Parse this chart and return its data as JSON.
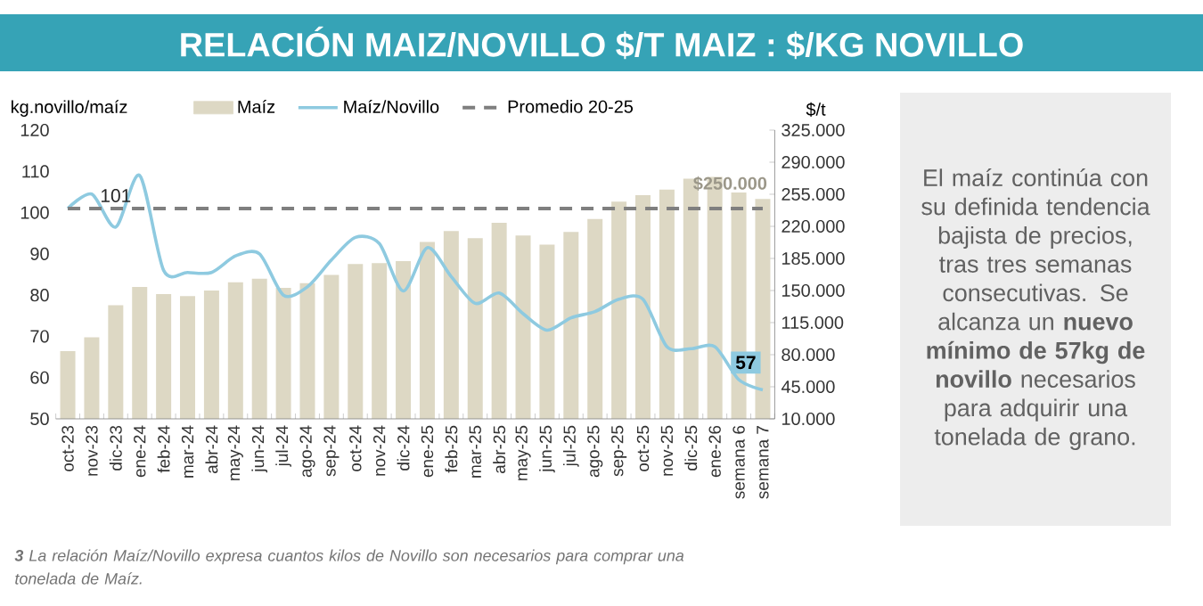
{
  "chart_data": {
    "type": "bar",
    "title": "RELACIÓN MAIZ/NOVILLO $/T MAIZ : $/KG NOVILLO",
    "ylabel": "kg.novillo/maíz",
    "y2label": "$/t",
    "categories": [
      "oct-23",
      "nov-23",
      "dic-23",
      "ene-24",
      "feb-24",
      "mar-24",
      "abr-24",
      "may-24",
      "jun-24",
      "jul-24",
      "ago-24",
      "sep-24",
      "oct-24",
      "nov-24",
      "dic-24",
      "ene-25",
      "feb-25",
      "mar-25",
      "abr-25",
      "may-25",
      "jun-25",
      "jul-25",
      "ago-25",
      "sep-25",
      "oct-25",
      "nov-25",
      "dic-25",
      "ene-26",
      "semana 6",
      "semana 7"
    ],
    "series": [
      {
        "name": "Maíz",
        "axis": "y2",
        "color": "#ddd8c4",
        "values": [
          84000,
          99000,
          134000,
          154000,
          146000,
          144000,
          150000,
          159000,
          163000,
          153000,
          158000,
          167000,
          179000,
          180000,
          182000,
          203000,
          215000,
          207000,
          224000,
          210000,
          200000,
          214000,
          228000,
          247000,
          254000,
          260000,
          272000,
          274000,
          257000,
          250000
        ],
        "value_labels": [
          null,
          null,
          null,
          null,
          null,
          null,
          null,
          null,
          null,
          null,
          null,
          null,
          null,
          null,
          null,
          null,
          null,
          null,
          null,
          null,
          null,
          null,
          null,
          null,
          null,
          null,
          null,
          null,
          null,
          "$250.000"
        ]
      },
      {
        "name": "Maíz/Novillo",
        "type": "line",
        "color": "#8ecae0",
        "values": [
          101,
          104.5,
          96.5,
          109,
          86,
          85.5,
          85.5,
          89.5,
          90,
          80,
          82,
          88.5,
          94,
          92.5,
          81,
          91.5,
          84.5,
          78,
          80.5,
          75.5,
          71.5,
          74.5,
          76,
          79,
          79,
          67.5,
          67,
          67.5,
          59.5,
          57
        ],
        "value_labels": [
          null,
          null,
          null,
          null,
          null,
          null,
          null,
          null,
          null,
          null,
          null,
          null,
          null,
          null,
          null,
          null,
          null,
          null,
          null,
          null,
          null,
          null,
          null,
          null,
          null,
          null,
          null,
          null,
          null,
          "57"
        ]
      },
      {
        "name": "Promedio 20-25",
        "type": "line",
        "line_style": "dashed",
        "color": "#7f7f7f",
        "values": [
          101,
          101,
          101,
          101,
          101,
          101,
          101,
          101,
          101,
          101,
          101,
          101,
          101,
          101,
          101,
          101,
          101,
          101,
          101,
          101,
          101,
          101,
          101,
          101,
          101,
          101,
          101,
          101,
          101,
          101
        ],
        "value_labels": [
          null,
          null,
          "101",
          null,
          null,
          null,
          null,
          null,
          null,
          null,
          null,
          null,
          null,
          null,
          null,
          null,
          null,
          null,
          null,
          null,
          null,
          null,
          null,
          null,
          null,
          null,
          null,
          null,
          null,
          null
        ]
      }
    ],
    "ylim": [
      50,
      120
    ],
    "yticks": [
      50,
      60,
      70,
      80,
      90,
      100,
      110,
      120
    ],
    "y2lim": [
      10000,
      325000
    ],
    "y2ticks": [
      {
        "value": 10000,
        "label": "10.000"
      },
      {
        "value": 45000,
        "label": "45.000"
      },
      {
        "value": 80000,
        "label": "80.000"
      },
      {
        "value": 115000,
        "label": "115.000"
      },
      {
        "value": 150000,
        "label": "150.000"
      },
      {
        "value": 185000,
        "label": "185.000"
      },
      {
        "value": 220000,
        "label": "220.000"
      },
      {
        "value": 255000,
        "label": "255.000"
      },
      {
        "value": 290000,
        "label": "290.000"
      },
      {
        "value": 325000,
        "label": "325.000"
      }
    ],
    "legend": "top",
    "annotations": [
      "El maíz continúa con su definida tendencia bajista de precios, tras tres semanas consecutivas. Se alcanza un **nuevo mínimo de 57kg de novillo** necesarios para adquirir una tonelada de grano.",
      "**3** La relación Maíz/Novillo expresa cuantos kilos de Novillo son necesarios para comprar una tonelada de Maíz."
    ]
  }
}
